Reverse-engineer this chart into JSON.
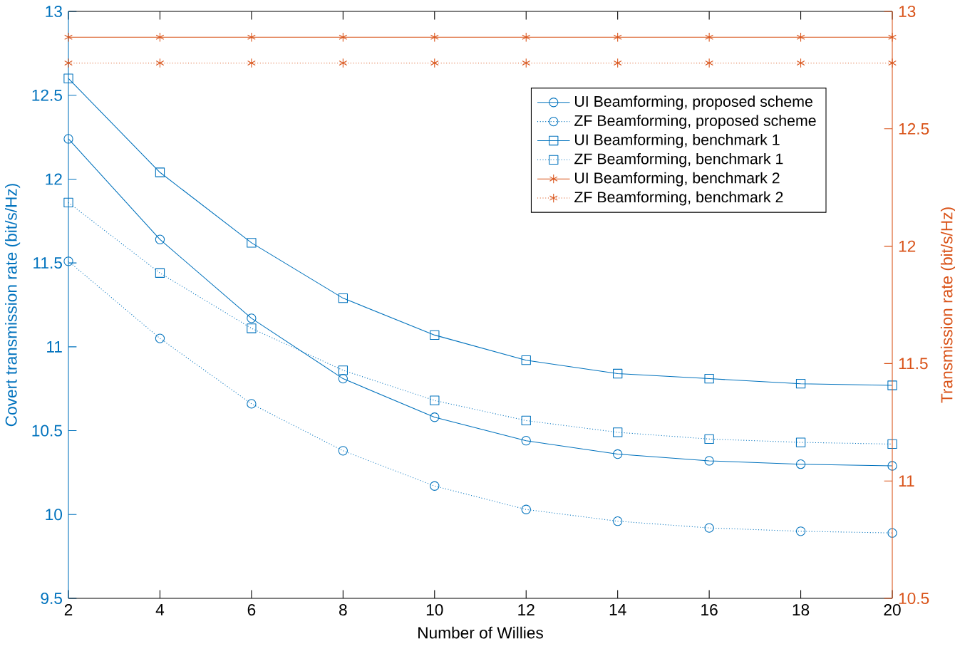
{
  "chart_data": {
    "type": "line",
    "xlabel": "Number of Willies",
    "ylabel": "Covert transmission rate (bit/s/Hz)",
    "y2label": "Transmission rate (bit/s/Hz)",
    "x": [
      2,
      4,
      6,
      8,
      10,
      12,
      14,
      16,
      18,
      20
    ],
    "xlim": [
      2,
      20
    ],
    "xticks": [
      2,
      4,
      6,
      8,
      10,
      12,
      14,
      16,
      18,
      20
    ],
    "ylim": [
      9.5,
      13
    ],
    "yticks": [
      9.5,
      10,
      10.5,
      11,
      11.5,
      12,
      12.5,
      13
    ],
    "y2lim": [
      10.5,
      13
    ],
    "y2ticks": [
      10.5,
      11,
      11.5,
      12,
      12.5,
      13
    ],
    "grid": false,
    "legend": "top right",
    "series": [
      {
        "name": "UI Beamforming,  proposed scheme",
        "color": "#0072bd",
        "marker": "circle",
        "line_style": "solid",
        "values": [
          12.24,
          11.64,
          11.17,
          10.81,
          10.58,
          10.44,
          10.36,
          10.32,
          10.3,
          10.29
        ]
      },
      {
        "name": "ZF Beamforming, proposed scheme",
        "color": "#0072bd",
        "marker": "circle",
        "line_style": "dotted",
        "values": [
          11.51,
          11.05,
          10.66,
          10.38,
          10.17,
          10.03,
          9.96,
          9.92,
          9.9,
          9.89
        ]
      },
      {
        "name": "UI Beamforming,  benchmark 1",
        "color": "#0072bd",
        "marker": "square",
        "line_style": "solid",
        "values": [
          12.6,
          12.04,
          11.62,
          11.29,
          11.07,
          10.92,
          10.84,
          10.81,
          10.78,
          10.77
        ]
      },
      {
        "name": "ZF Beamforming,  benchmark 1",
        "color": "#0072bd",
        "marker": "square",
        "line_style": "dotted",
        "values": [
          11.86,
          11.44,
          11.11,
          10.86,
          10.68,
          10.56,
          10.49,
          10.45,
          10.43,
          10.42
        ]
      },
      {
        "name": "UI Beamforming,  benchmark 2",
        "color": "#d95319",
        "marker": "cross",
        "line_style": "solid",
        "axis": "y2",
        "values": [
          12.89,
          12.89,
          12.89,
          12.89,
          12.89,
          12.89,
          12.89,
          12.89,
          12.89,
          12.89
        ]
      },
      {
        "name": "ZF Beamforming,  benchmark 2",
        "color": "#d95319",
        "marker": "cross",
        "line_style": "dotted",
        "axis": "y2",
        "values": [
          12.78,
          12.78,
          12.78,
          12.78,
          12.78,
          12.78,
          12.78,
          12.78,
          12.78,
          12.78
        ]
      }
    ]
  }
}
